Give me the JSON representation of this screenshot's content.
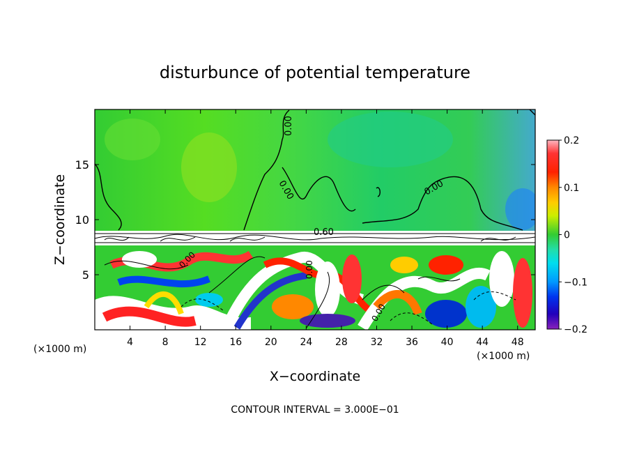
{
  "chart_data": {
    "type": "heatmap",
    "title": "disturbunce of potential temperature",
    "xlabel": "X−coordinate",
    "ylabel": "Z−coordinate",
    "x_unit": "(×1000 m)",
    "x_unit_right": "(×1000 m)",
    "xlim": [
      0,
      50
    ],
    "ylim": [
      0,
      20
    ],
    "x_ticks": [
      4,
      8,
      12,
      16,
      20,
      24,
      28,
      32,
      36,
      40,
      44,
      48
    ],
    "x_tick_labels": [
      "4",
      "8",
      "12",
      "16",
      "20",
      "24",
      "28",
      "32",
      "36",
      "40",
      "44",
      "48"
    ],
    "y_ticks": [
      5,
      10,
      15
    ],
    "y_tick_labels": [
      "5",
      "10",
      "15"
    ],
    "colorbar": {
      "range": [
        -0.2,
        0.2
      ],
      "ticks": [
        0.2,
        0.1,
        0,
        -0.1,
        -0.2
      ],
      "tick_labels": [
        "0.2",
        "0.1",
        "0",
        "−0.1",
        "−0.2"
      ]
    },
    "contour_labels": [
      "0.00",
      "0.00",
      "0.00",
      "0.60",
      "0.00",
      "0.00",
      "0.00"
    ],
    "footer": "CONTOUR INTERVAL = 3.000E−01"
  }
}
